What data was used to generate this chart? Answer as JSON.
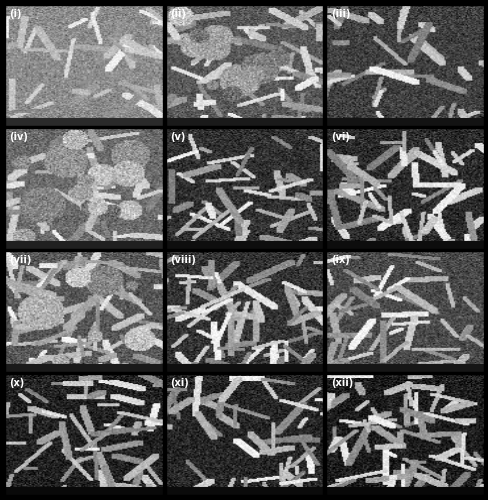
{
  "rows": 4,
  "cols": 3,
  "figsize": [
    4.89,
    5.0
  ],
  "dpi": 100,
  "panels": [
    {
      "label": "(i)",
      "row": 0,
      "col": 0
    },
    {
      "label": "(ii)",
      "row": 0,
      "col": 1
    },
    {
      "label": "(iii)",
      "row": 0,
      "col": 2
    },
    {
      "label": "(iv)",
      "row": 1,
      "col": 0
    },
    {
      "label": "(v)",
      "row": 1,
      "col": 1
    },
    {
      "label": "(vi)",
      "row": 1,
      "col": 2
    },
    {
      "label": "(vii)",
      "row": 2,
      "col": 0
    },
    {
      "label": "(viii)",
      "row": 2,
      "col": 1
    },
    {
      "label": "(ix)",
      "row": 2,
      "col": 2
    },
    {
      "label": "(x)",
      "row": 3,
      "col": 0
    },
    {
      "label": "(xi)",
      "row": 3,
      "col": 1
    },
    {
      "label": "(xii)",
      "row": 3,
      "col": 2
    }
  ],
  "label_color": "white",
  "label_fontsize": 7,
  "label_fontweight": "bold",
  "border_color": "black",
  "border_linewidth": 1.0,
  "background_color": "black",
  "panel_bg_grays": [
    0.55,
    0.35,
    0.25,
    0.42,
    0.19,
    0.17,
    0.34,
    0.2,
    0.29,
    0.13,
    0.15,
    0.11
  ],
  "noise_seed": 42,
  "subplots_hspace": 0.02,
  "subplots_wspace": 0.02
}
